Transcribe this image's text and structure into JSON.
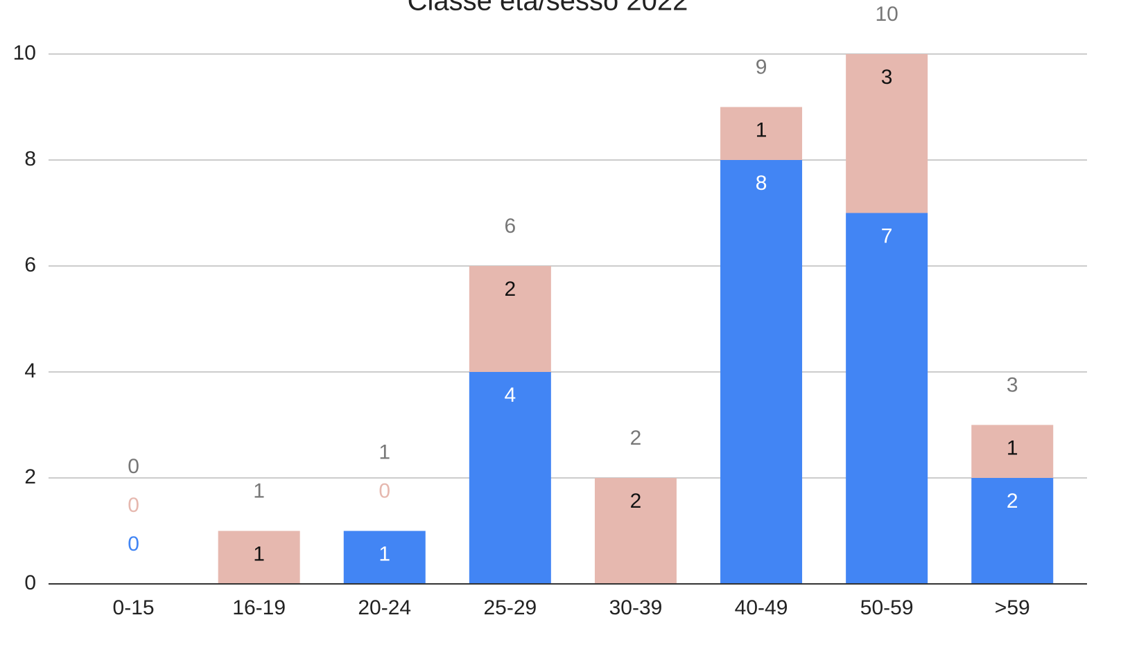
{
  "chart_data": {
    "type": "stacked_bar",
    "title": "Classe età/sesso 2022",
    "categories": [
      "0-15",
      "16-19",
      "20-24",
      "25-29",
      "30-39",
      "40-49",
      "50-59",
      ">59"
    ],
    "series": [
      {
        "color": "#4285f4",
        "values": [
          0,
          0,
          1,
          4,
          0,
          8,
          7,
          2
        ]
      },
      {
        "color": "#e6b8af",
        "values": [
          0,
          1,
          0,
          2,
          2,
          1,
          3,
          1
        ]
      }
    ],
    "totals": [
      0,
      1,
      1,
      6,
      2,
      9,
      10,
      3
    ],
    "ylim": [
      0,
      10
    ],
    "yticks": [
      0,
      2,
      4,
      6,
      8,
      10
    ],
    "grid": true
  }
}
